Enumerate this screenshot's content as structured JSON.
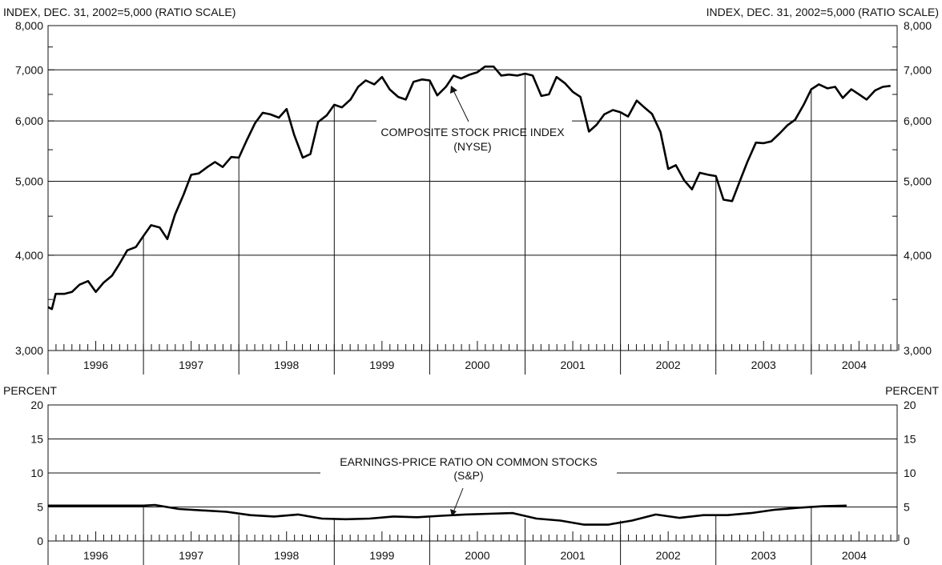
{
  "chart_data": [
    {
      "type": "line",
      "scale": "log",
      "left_axis_title": "INDEX, DEC. 31, 2002=5,000 (RATIO SCALE)",
      "right_axis_title": "INDEX, DEC. 31, 2002=5,000 (RATIO SCALE)",
      "annotation_line1": "COMPOSITE STOCK PRICE INDEX",
      "annotation_line2": "(NYSE)",
      "ylim": [
        3000,
        8000
      ],
      "yticks": [
        3000,
        4000,
        5000,
        6000,
        7000,
        8000
      ],
      "ytick_labels": [
        "3,000",
        "4,000",
        "5,000",
        "6,000",
        "7,000",
        "8,000"
      ],
      "years": [
        "1996",
        "1997",
        "1998",
        "1999",
        "2000",
        "2001",
        "2002",
        "2003",
        "2004"
      ],
      "x_start": 1996.0,
      "x_end": 2004.9,
      "series": [
        {
          "x": [
            1996.0,
            1996.04,
            1996.08,
            1996.17,
            1996.25,
            1996.33,
            1996.42,
            1996.5,
            1996.58,
            1996.67,
            1996.75,
            1996.83,
            1996.92,
            1997.0,
            1997.08,
            1997.17,
            1997.25,
            1997.33,
            1997.42,
            1997.5,
            1997.58,
            1997.67,
            1997.75,
            1997.83,
            1997.92,
            1998.0,
            1998.08,
            1998.17,
            1998.25,
            1998.33,
            1998.42,
            1998.5,
            1998.58,
            1998.67,
            1998.75,
            1998.83,
            1998.92,
            1999.0,
            1999.08,
            1999.17,
            1999.25,
            1999.33,
            1999.42,
            1999.5,
            1999.58,
            1999.67,
            1999.75,
            1999.83,
            1999.92,
            2000.0,
            2000.08,
            2000.17,
            2000.25,
            2000.33,
            2000.42,
            2000.5,
            2000.58,
            2000.67,
            2000.75,
            2000.83,
            2000.92,
            2001.0,
            2001.08,
            2001.17,
            2001.25,
            2001.33,
            2001.42,
            2001.5,
            2001.58,
            2001.67,
            2001.75,
            2001.83,
            2001.92,
            2002.0,
            2002.08,
            2002.17,
            2002.25,
            2002.33,
            2002.42,
            2002.5,
            2002.58,
            2002.67,
            2002.75,
            2002.83,
            2002.92,
            2003.0,
            2003.08,
            2003.17,
            2003.25,
            2003.33,
            2003.42,
            2003.5,
            2003.58,
            2003.67,
            2003.75,
            2003.83,
            2003.92,
            2004.0,
            2004.08,
            2004.17,
            2004.25,
            2004.33,
            2004.42,
            2004.5,
            2004.58,
            2004.67,
            2004.75,
            2004.83
          ],
          "values": [
            3420,
            3400,
            3560,
            3560,
            3580,
            3660,
            3700,
            3580,
            3680,
            3760,
            3900,
            4060,
            4100,
            4240,
            4380,
            4350,
            4200,
            4520,
            4800,
            5100,
            5120,
            5220,
            5300,
            5220,
            5380,
            5370,
            5650,
            5960,
            6150,
            6120,
            6060,
            6220,
            5750,
            5370,
            5430,
            5980,
            6100,
            6300,
            6250,
            6400,
            6650,
            6780,
            6700,
            6850,
            6600,
            6450,
            6400,
            6750,
            6800,
            6780,
            6480,
            6650,
            6880,
            6820,
            6900,
            6950,
            7070,
            7070,
            6880,
            6900,
            6880,
            6920,
            6880,
            6470,
            6500,
            6850,
            6720,
            6550,
            6450,
            5810,
            5930,
            6120,
            6200,
            6160,
            6080,
            6380,
            6250,
            6130,
            5800,
            5190,
            5250,
            5010,
            4880,
            5130,
            5100,
            5080,
            4730,
            4710,
            5000,
            5300,
            5620,
            5610,
            5640,
            5780,
            5920,
            6020,
            6300,
            6600,
            6700,
            6620,
            6650,
            6430,
            6600,
            6500,
            6400,
            6580,
            6650,
            6670
          ]
        }
      ]
    },
    {
      "type": "line",
      "left_axis_title": "PERCENT",
      "right_axis_title": "PERCENT",
      "annotation_line1": "EARNINGS-PRICE RATIO ON COMMON STOCKS",
      "annotation_line2": "(S&P)",
      "ylim": [
        0,
        20
      ],
      "yticks": [
        0,
        5,
        10,
        15,
        20
      ],
      "ytick_labels": [
        "0",
        "5",
        "10",
        "15",
        "20"
      ],
      "years": [
        "1996",
        "1997",
        "1998",
        "1999",
        "2000",
        "2001",
        "2002",
        "2003",
        "2004"
      ],
      "x_start": 1996.0,
      "x_end": 2004.9,
      "series": [
        {
          "x": [
            1996.0,
            1996.5,
            1997.0,
            1997.12,
            1997.37,
            1997.62,
            1997.87,
            1998.12,
            1998.37,
            1998.62,
            1998.87,
            1999.12,
            1999.37,
            1999.62,
            1999.87,
            2000.12,
            2000.37,
            2000.62,
            2000.87,
            2001.12,
            2001.37,
            2001.62,
            2001.87,
            2002.12,
            2002.37,
            2002.62,
            2002.87,
            2003.12,
            2003.37,
            2003.62,
            2003.87,
            2004.12,
            2004.37
          ],
          "values": [
            5.2,
            5.2,
            5.2,
            5.3,
            4.7,
            4.5,
            4.3,
            3.8,
            3.6,
            3.9,
            3.3,
            3.2,
            3.3,
            3.6,
            3.5,
            3.7,
            3.9,
            4.0,
            4.1,
            3.3,
            3.0,
            2.4,
            2.4,
            3.0,
            3.9,
            3.4,
            3.8,
            3.8,
            4.1,
            4.6,
            4.9,
            5.1,
            5.2
          ]
        }
      ]
    }
  ]
}
